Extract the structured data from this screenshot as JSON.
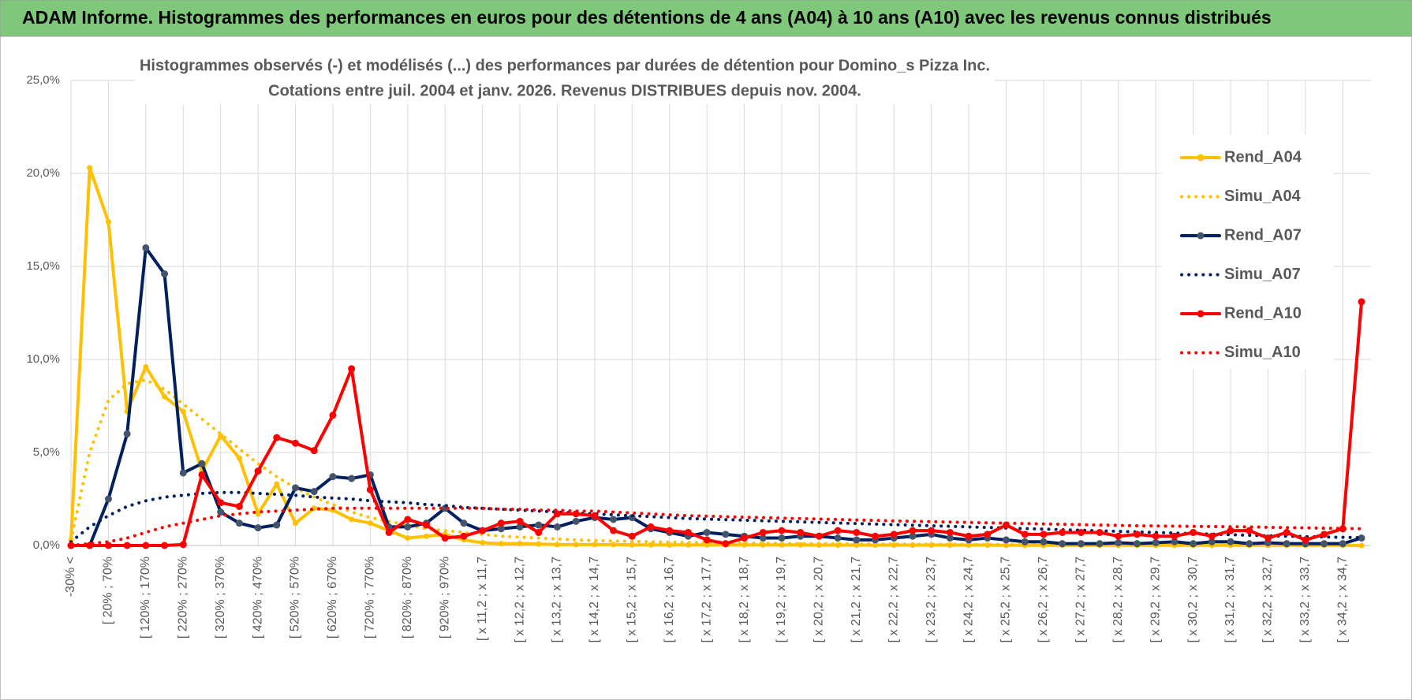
{
  "header": {
    "title": "ADAM Informe. Histogrammes des performances en euros pour des détentions de 4 ans (A04) à 10 ans (A10) avec les revenus connus distribués"
  },
  "chart_data": {
    "type": "line",
    "title": "Histogrammes observés (-) et modélisés (...) des performances par durées de détention pour Domino_s Pizza Inc.",
    "subtitle": "Cotations entre juil. 2004 et janv. 2026. Revenus DISTRIBUES depuis nov. 2004.",
    "categories": [
      "-30% <",
      null,
      "[ 20% ; 70%",
      null,
      "[ 120% ; 170%",
      null,
      "[ 220% ; 270%",
      null,
      "[ 320% ; 370%",
      null,
      "[ 420% ; 470%",
      null,
      "[ 520% ; 570%",
      null,
      "[ 620% ; 670%",
      null,
      "[ 720% ; 770%",
      null,
      "[ 820% ; 870%",
      null,
      "[ 920% ; 970%",
      null,
      "[ x 11,2 ; x 11,7",
      null,
      "[ x 12,2 ; x 12,7",
      null,
      "[ x 13,2 ; x 13,7",
      null,
      "[ x 14,2 ; x 14,7",
      null,
      "[ x 15,2 ; x 15,7",
      null,
      "[ x 16,2 ; x 16,7",
      null,
      "[ x 17,2 ; x 17,7",
      null,
      "[ x 18,2 ; x 18,7",
      null,
      "[ x 19,2 ; x 19,7",
      null,
      "[ x 20,2 ; x 20,7",
      null,
      "[ x 21,2 ; x 21,7",
      null,
      "[ x 22,2 ; x 22,7",
      null,
      "[ x 23,2 ; x 23,7",
      null,
      "[ x 24,2 ; x 24,7",
      null,
      "[ x 25,2 ; x 25,7",
      null,
      "[ x 26,2 ; x 26,7",
      null,
      "[ x 27,2 ; x 27,7",
      null,
      "[ x 28,2 ; x 28,7",
      null,
      "[ x 29,2 ; x 29,7",
      null,
      "[ x 30,2 ; x 30,7",
      null,
      "[ x 31,2 ; x 31,7",
      null,
      "[ x 32,2 ; x 32,7",
      null,
      "[ x 33,2 ; x 33,7",
      null,
      "[ x 34,2 ; x 34,7",
      null
    ],
    "ylim": [
      0,
      25
    ],
    "yticks": [
      {
        "value": 0,
        "label": "0,0%"
      },
      {
        "value": 5,
        "label": "5,0%"
      },
      {
        "value": 10,
        "label": "10,0%"
      },
      {
        "value": 15,
        "label": "15,0%"
      },
      {
        "value": 20,
        "label": "20,0%"
      },
      {
        "value": 25,
        "label": "25,0%"
      }
    ],
    "grid": true,
    "legend": "right",
    "series": [
      {
        "name": "Rend_A04",
        "color": "#ffc000",
        "line_style": "solid",
        "marker_color": "#ffc000",
        "values": [
          0.3,
          20.3,
          17.4,
          7.2,
          9.6,
          8.0,
          7.2,
          4.0,
          5.9,
          4.7,
          1.7,
          3.3,
          1.2,
          2.0,
          1.9,
          1.4,
          1.2,
          0.8,
          0.4,
          0.5,
          0.6,
          0.3,
          0.15,
          0.1,
          0.1,
          0.08,
          0.05,
          0.05,
          0.05,
          0.05,
          0.03,
          0.03,
          0.03,
          0.03,
          0.03,
          0.03,
          0.03,
          0.03,
          0.03,
          0.03,
          0.02,
          0.02,
          0.02,
          0.02,
          0.02,
          0.02,
          0.02,
          0.02,
          0.02,
          0.02,
          0.01,
          0.01,
          0.01,
          0.01,
          0.01,
          0.01,
          0.01,
          0.01,
          0.01,
          0.01,
          0.01,
          0.01,
          0.01,
          0.01,
          0.01,
          0.01,
          0.01,
          0.01,
          0.01,
          0
        ]
      },
      {
        "name": "Simu_A04",
        "color": "#ffc000",
        "line_style": "dotted",
        "values": [
          0.3,
          5.0,
          7.8,
          8.7,
          8.9,
          8.4,
          7.6,
          6.8,
          6.0,
          5.2,
          4.4,
          3.7,
          3.1,
          2.6,
          2.2,
          1.8,
          1.5,
          1.3,
          1.1,
          0.9,
          0.8,
          0.7,
          0.6,
          0.5,
          0.45,
          0.4,
          0.35,
          0.3,
          0.27,
          0.24,
          0.22,
          0.2,
          0.18,
          0.16,
          0.15,
          0.14,
          0.13,
          0.12,
          0.11,
          0.1,
          0.1,
          0.09,
          0.09,
          0.08,
          0.08,
          0.07,
          0.07,
          0.07,
          0.06,
          0.06,
          0.06,
          0.05,
          0.05,
          0.05,
          0.05,
          0.04,
          0.04,
          0.04,
          0.04,
          0.04,
          0.03,
          0.03,
          0.03,
          0.03,
          0.03,
          0.03,
          0.03,
          0.02,
          0.02,
          0.02
        ]
      },
      {
        "name": "Rend_A07",
        "color": "#002060",
        "line_style": "solid",
        "marker_color": "#44546a",
        "values": [
          0,
          0,
          2.5,
          6.0,
          16.0,
          14.6,
          3.9,
          4.4,
          1.8,
          1.2,
          0.95,
          1.1,
          3.1,
          2.9,
          3.7,
          3.6,
          3.8,
          1.0,
          1.0,
          1.2,
          2.0,
          1.2,
          0.8,
          0.9,
          1.0,
          1.1,
          1.0,
          1.3,
          1.5,
          1.4,
          1.5,
          0.9,
          0.7,
          0.5,
          0.7,
          0.6,
          0.5,
          0.4,
          0.4,
          0.5,
          0.5,
          0.4,
          0.3,
          0.3,
          0.4,
          0.5,
          0.6,
          0.4,
          0.3,
          0.4,
          0.3,
          0.2,
          0.2,
          0.1,
          0.1,
          0.1,
          0.15,
          0.1,
          0.15,
          0.2,
          0.1,
          0.2,
          0.2,
          0.1,
          0.15,
          0.1,
          0.1,
          0.1,
          0.1,
          0.4
        ]
      },
      {
        "name": "Simu_A07",
        "color": "#002060",
        "line_style": "dotted",
        "values": [
          0.2,
          1.0,
          1.6,
          2.1,
          2.4,
          2.6,
          2.7,
          2.8,
          2.85,
          2.85,
          2.8,
          2.75,
          2.7,
          2.6,
          2.55,
          2.5,
          2.4,
          2.35,
          2.3,
          2.2,
          2.15,
          2.05,
          2.0,
          1.95,
          1.9,
          1.85,
          1.8,
          1.75,
          1.7,
          1.65,
          1.6,
          1.55,
          1.5,
          1.45,
          1.42,
          1.39,
          1.36,
          1.33,
          1.3,
          1.27,
          1.24,
          1.21,
          1.18,
          1.15,
          1.12,
          1.09,
          1.06,
          1.03,
          1.0,
          0.97,
          0.94,
          0.91,
          0.88,
          0.85,
          0.82,
          0.79,
          0.76,
          0.73,
          0.7,
          0.67,
          0.64,
          0.61,
          0.58,
          0.55,
          0.52,
          0.5,
          0.48,
          0.46,
          0.44,
          0.42
        ]
      },
      {
        "name": "Rend_A10",
        "color": "#ff0000",
        "line_style": "solid",
        "marker_color": "#ff0000",
        "values": [
          0,
          0,
          0,
          0,
          0,
          0,
          0.05,
          3.8,
          2.3,
          2.1,
          4.0,
          5.8,
          5.5,
          5.1,
          7.0,
          9.5,
          3.0,
          0.7,
          1.4,
          1.1,
          0.4,
          0.5,
          0.8,
          1.2,
          1.3,
          0.7,
          1.7,
          1.7,
          1.6,
          0.8,
          0.5,
          1.0,
          0.8,
          0.7,
          0.3,
          0.1,
          0.4,
          0.7,
          0.8,
          0.7,
          0.5,
          0.8,
          0.7,
          0.5,
          0.6,
          0.8,
          0.8,
          0.7,
          0.5,
          0.6,
          1.1,
          0.6,
          0.6,
          0.7,
          0.7,
          0.7,
          0.5,
          0.6,
          0.5,
          0.5,
          0.7,
          0.5,
          0.8,
          0.8,
          0.4,
          0.7,
          0.3,
          0.6,
          0.9,
          13.1
        ]
      },
      {
        "name": "Simu_A10",
        "color": "#ff0000",
        "line_style": "dotted",
        "values": [
          0,
          0.1,
          0.2,
          0.4,
          0.7,
          1.0,
          1.2,
          1.4,
          1.6,
          1.7,
          1.8,
          1.85,
          1.9,
          1.95,
          2.0,
          2.0,
          2.0,
          2.0,
          2.0,
          2.0,
          2.0,
          2.0,
          2.0,
          1.95,
          1.95,
          1.9,
          1.9,
          1.85,
          1.85,
          1.8,
          1.75,
          1.7,
          1.65,
          1.6,
          1.58,
          1.55,
          1.52,
          1.5,
          1.47,
          1.45,
          1.42,
          1.4,
          1.37,
          1.35,
          1.32,
          1.3,
          1.28,
          1.26,
          1.24,
          1.22,
          1.2,
          1.18,
          1.16,
          1.14,
          1.12,
          1.1,
          1.08,
          1.06,
          1.05,
          1.04,
          1.03,
          1.02,
          1.01,
          1.0,
          0.98,
          0.96,
          0.95,
          0.93,
          0.92,
          0.9
        ]
      }
    ]
  }
}
